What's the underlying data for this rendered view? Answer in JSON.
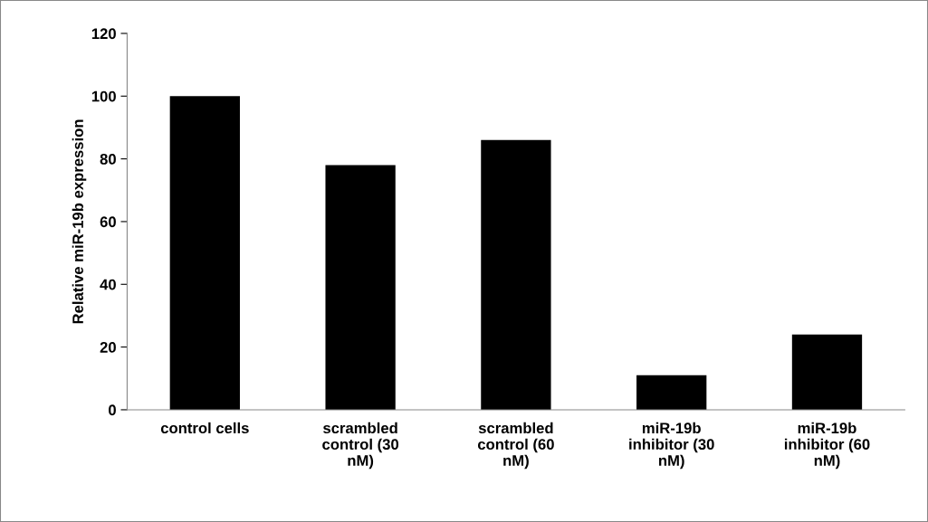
{
  "chart_data": {
    "type": "bar",
    "ylabel": "Relative miR-19b expression",
    "categories": [
      "control cells",
      "scrambled\ncontrol (30\nnM)",
      "scrambled\ncontrol (60\nnM)",
      "miR-19b\ninhibitor (30\nnM)",
      "miR-19b\ninhibitor (60\nnM)"
    ],
    "values": [
      100,
      78,
      86,
      11,
      24
    ],
    "color": "#000000",
    "ylim": [
      0,
      120
    ],
    "yticks": [
      0,
      20,
      40,
      60,
      80,
      100,
      120
    ],
    "grid": false,
    "legend": false
  }
}
